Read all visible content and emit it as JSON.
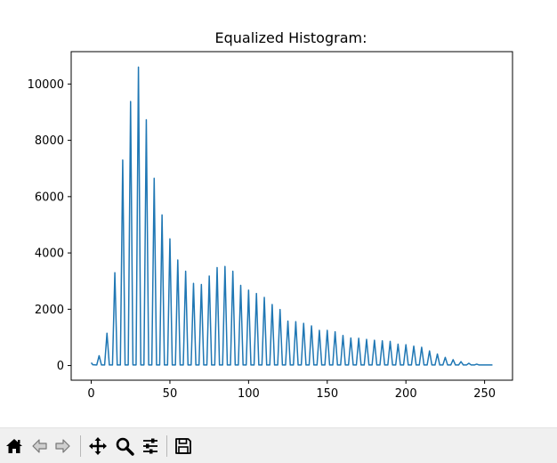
{
  "chart_data": {
    "type": "line",
    "title": "Equalized Histogram:",
    "xlabel": "",
    "ylabel": "",
    "xlim": [
      -12.75,
      267.75
    ],
    "ylim": [
      -520,
      11150
    ],
    "xticks": [
      0,
      50,
      100,
      150,
      200,
      250
    ],
    "yticks": [
      0,
      2000,
      4000,
      6000,
      8000,
      10000
    ],
    "xtick_labels": [
      "0",
      "50",
      "100",
      "150",
      "200",
      "250"
    ],
    "ytick_labels": [
      "0",
      "2000",
      "4000",
      "6000",
      "8000",
      "10000"
    ],
    "grid": false,
    "line_color": "#1f77b4",
    "baseline_points": [
      {
        "x": 0,
        "y": 100
      },
      {
        "x": 1,
        "y": 30
      },
      {
        "x": 3,
        "y": 20
      },
      {
        "x": 250,
        "y": 20
      },
      {
        "x": 255,
        "y": 20
      }
    ],
    "peaks": [
      {
        "x": 5,
        "y": 350
      },
      {
        "x": 10,
        "y": 1150
      },
      {
        "x": 15,
        "y": 3300
      },
      {
        "x": 20,
        "y": 7300
      },
      {
        "x": 25,
        "y": 9380
      },
      {
        "x": 30,
        "y": 10600
      },
      {
        "x": 35,
        "y": 8730
      },
      {
        "x": 40,
        "y": 6650
      },
      {
        "x": 45,
        "y": 5350
      },
      {
        "x": 50,
        "y": 4500
      },
      {
        "x": 55,
        "y": 3750
      },
      {
        "x": 60,
        "y": 3350
      },
      {
        "x": 65,
        "y": 2920
      },
      {
        "x": 70,
        "y": 2880
      },
      {
        "x": 75,
        "y": 3180
      },
      {
        "x": 80,
        "y": 3480
      },
      {
        "x": 85,
        "y": 3520
      },
      {
        "x": 90,
        "y": 3350
      },
      {
        "x": 95,
        "y": 2850
      },
      {
        "x": 100,
        "y": 2680
      },
      {
        "x": 105,
        "y": 2560
      },
      {
        "x": 110,
        "y": 2420
      },
      {
        "x": 115,
        "y": 2170
      },
      {
        "x": 120,
        "y": 1990
      },
      {
        "x": 125,
        "y": 1580
      },
      {
        "x": 130,
        "y": 1560
      },
      {
        "x": 135,
        "y": 1500
      },
      {
        "x": 140,
        "y": 1410
      },
      {
        "x": 145,
        "y": 1250
      },
      {
        "x": 150,
        "y": 1250
      },
      {
        "x": 155,
        "y": 1200
      },
      {
        "x": 160,
        "y": 1070
      },
      {
        "x": 165,
        "y": 980
      },
      {
        "x": 170,
        "y": 970
      },
      {
        "x": 175,
        "y": 930
      },
      {
        "x": 180,
        "y": 900
      },
      {
        "x": 185,
        "y": 880
      },
      {
        "x": 190,
        "y": 860
      },
      {
        "x": 195,
        "y": 760
      },
      {
        "x": 200,
        "y": 740
      },
      {
        "x": 205,
        "y": 690
      },
      {
        "x": 210,
        "y": 650
      },
      {
        "x": 215,
        "y": 520
      },
      {
        "x": 220,
        "y": 410
      },
      {
        "x": 225,
        "y": 290
      },
      {
        "x": 230,
        "y": 210
      },
      {
        "x": 235,
        "y": 140
      },
      {
        "x": 240,
        "y": 80
      },
      {
        "x": 245,
        "y": 50
      }
    ]
  },
  "toolbar": {
    "icons": [
      "home-icon",
      "back-arrow-icon",
      "forward-arrow-icon",
      "pan-icon",
      "zoom-icon",
      "configure-subplots-icon",
      "save-icon"
    ]
  }
}
